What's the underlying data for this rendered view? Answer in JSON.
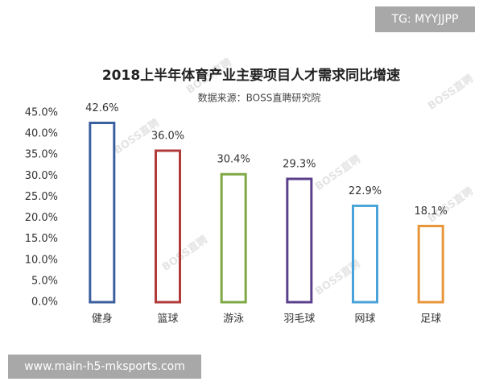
{
  "chart_data": {
    "type": "bar",
    "title": "2018上半年体育产业主要项目人才需求同比增速",
    "subtitle": "数据来源：BOSS直聘研究院",
    "watermark": "BOSS直聘",
    "categories": [
      "健身",
      "篮球",
      "游泳",
      "羽毛球",
      "网球",
      "足球"
    ],
    "values": [
      42.6,
      36.0,
      30.4,
      29.3,
      22.9,
      18.1
    ],
    "value_labels": [
      "42.6%",
      "36.0%",
      "30.4%",
      "29.3%",
      "22.9%",
      "18.1%"
    ],
    "colors": [
      "#3b5f9e",
      "#b23a3a",
      "#7ea843",
      "#5b3f8c",
      "#4aa3d8",
      "#e8963a"
    ],
    "ylim": [
      0,
      45
    ],
    "yticks": [
      {
        "value": 0,
        "label": "0.0%"
      },
      {
        "value": 5,
        "label": "5.0%"
      },
      {
        "value": 10,
        "label": "10.0%"
      },
      {
        "value": 15,
        "label": "15.0%"
      },
      {
        "value": 20,
        "label": "20.0%"
      },
      {
        "value": 25,
        "label": "25.0%"
      },
      {
        "value": 30,
        "label": "30.0%"
      },
      {
        "value": 35,
        "label": "35.0%"
      },
      {
        "value": 40,
        "label": "40.0%"
      },
      {
        "value": 45,
        "label": "45.0%"
      }
    ]
  },
  "overlays": {
    "top_tag": "TG: MYYJJPP",
    "bottom_url": "www.main-h5-mksports.com"
  }
}
